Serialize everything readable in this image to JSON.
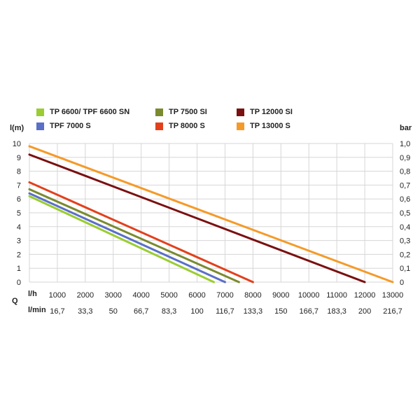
{
  "chart_data": {
    "type": "line",
    "ylabel": "l(m)",
    "y2label": "bar",
    "x_unit_label": "l/h",
    "q_label": "Q",
    "x2_unit_label": "l/min",
    "xlim": [
      0,
      13000
    ],
    "ylim": [
      0,
      10
    ],
    "y2lim": [
      0,
      1.0
    ],
    "x_ticks": [
      "1000",
      "2000",
      "3000",
      "4000",
      "5000",
      "6000",
      "7000",
      "8000",
      "9000",
      "10000",
      "11000",
      "12000",
      "13000"
    ],
    "x2_ticks": [
      "16,7",
      "33,3",
      "50",
      "66,7",
      "83,3",
      "100",
      "116,7",
      "133,3",
      "150",
      "166,7",
      "183,3",
      "200",
      "216,7"
    ],
    "y_ticks": [
      "0",
      "1",
      "2",
      "3",
      "4",
      "5",
      "6",
      "7",
      "8",
      "9",
      "10"
    ],
    "y2_ticks": [
      "0",
      "0,1",
      "0,2",
      "0,3",
      "0,4",
      "0,5",
      "0,6",
      "0,7",
      "0,8",
      "0,9",
      "1,0"
    ],
    "grid": true,
    "legend_position": "top",
    "series": [
      {
        "name": "TP 6600/ TPF 6600 SN",
        "color": "#9acd32",
        "x": [
          0,
          6600
        ],
        "y": [
          6.2,
          0
        ]
      },
      {
        "name": "TPF 7000 S",
        "color": "#5a6fc8",
        "x": [
          0,
          7000
        ],
        "y": [
          6.4,
          0
        ]
      },
      {
        "name": "TP 7500 SI",
        "color": "#7a8a2e",
        "x": [
          0,
          7500
        ],
        "y": [
          6.7,
          0
        ]
      },
      {
        "name": "TP 8000 S",
        "color": "#e2401c",
        "x": [
          0,
          8000
        ],
        "y": [
          7.2,
          0
        ]
      },
      {
        "name": "TP 12000 SI",
        "color": "#7a1010",
        "x": [
          0,
          12000
        ],
        "y": [
          9.2,
          0
        ]
      },
      {
        "name": "TP 13000 S",
        "color": "#f59a28",
        "x": [
          0,
          13000
        ],
        "y": [
          9.8,
          0
        ]
      }
    ]
  }
}
